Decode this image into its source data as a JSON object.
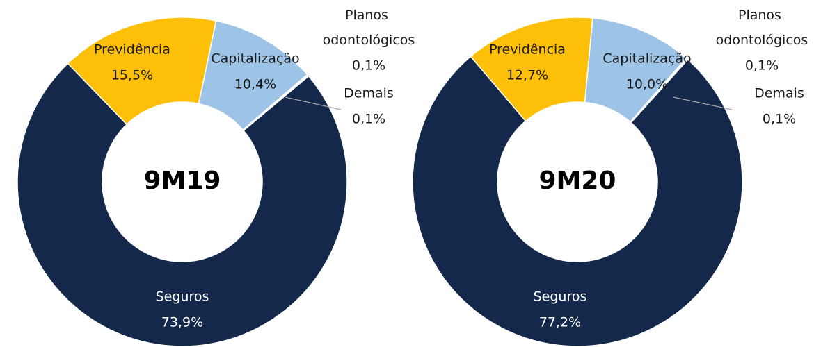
{
  "chart_data": [
    {
      "type": "donut",
      "center_label": "9M19",
      "categories": [
        "Seguros",
        "Previdência",
        "Capitalização",
        "Planos odontológicos",
        "Demais"
      ],
      "values": [
        73.9,
        15.5,
        10.4,
        0.1,
        0.1
      ],
      "value_labels": [
        "73,9%",
        "15,5%",
        "10,4%",
        "0,1%",
        "0,1%"
      ],
      "colors": [
        "#13284a",
        "#fdbf07",
        "#9dc3e6",
        "#5b9bd5",
        "#dde8f5"
      ]
    },
    {
      "type": "donut",
      "center_label": "9M20",
      "categories": [
        "Seguros",
        "Previdência",
        "Capitalização",
        "Planos odontológicos",
        "Demais"
      ],
      "values": [
        77.2,
        12.7,
        10.0,
        0.1,
        0.1
      ],
      "value_labels": [
        "77,2%",
        "12,7%",
        "10,0%",
        "0,1%",
        "0,1%"
      ],
      "colors": [
        "#13284a",
        "#fdbf07",
        "#9dc3e6",
        "#5b9bd5",
        "#dde8f5"
      ]
    }
  ]
}
